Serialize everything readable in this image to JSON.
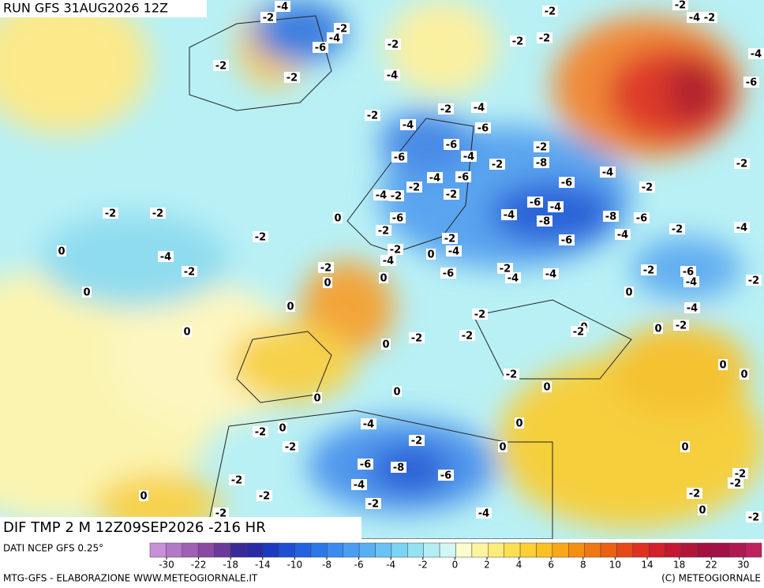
{
  "header": {
    "run": "RUN GFS 31AUG2026 12Z",
    "product": "DIF TMP 2 M 12Z09SEP2026 -216 HR",
    "source": "DATI NCEP GFS 0.25°",
    "credit": "MTG-GFS - ELABORAZIONE WWW.METEOGIORNALE.IT",
    "copyright": "(C) METEOGIORNALE"
  },
  "map_labels": [
    -4,
    -2,
    -2,
    -4,
    -6,
    -2,
    -2,
    -2,
    -4,
    -2,
    -2,
    -4,
    -4,
    -6,
    -6,
    -4,
    -2,
    -2,
    -8,
    -6,
    -2,
    -4,
    -6,
    -4,
    -2,
    -2,
    -6,
    -4,
    -2,
    -6,
    -2,
    -4,
    -6,
    -4,
    -8,
    -8,
    -6,
    -4,
    -2,
    -4,
    -2,
    -2,
    0,
    -2,
    -4,
    -2,
    0,
    0,
    -2,
    -4,
    0,
    -2,
    -4,
    -2,
    0,
    0,
    -6,
    -2,
    -4,
    -4,
    -6,
    -2,
    -6,
    -4,
    -2,
    0,
    0,
    -2,
    -4,
    0,
    -2,
    0,
    0,
    -2,
    -2,
    -2,
    0,
    -2,
    0,
    0,
    0,
    0,
    0,
    0,
    -4,
    -2,
    0,
    -2,
    -2,
    0,
    0,
    -6,
    -8,
    -6,
    -4,
    -2,
    -2,
    0,
    -2,
    -4,
    -2,
    -2,
    -2,
    0,
    -2,
    -2,
    -2,
    -4,
    -6,
    -2,
    -2,
    -2,
    -2,
    -2,
    -4
  ],
  "colorbar": {
    "ticks": [
      -30,
      -22,
      -18,
      -14,
      -10,
      -8,
      -6,
      -4,
      -2,
      0,
      2,
      4,
      6,
      8,
      10,
      14,
      18,
      22,
      30
    ]
  }
}
